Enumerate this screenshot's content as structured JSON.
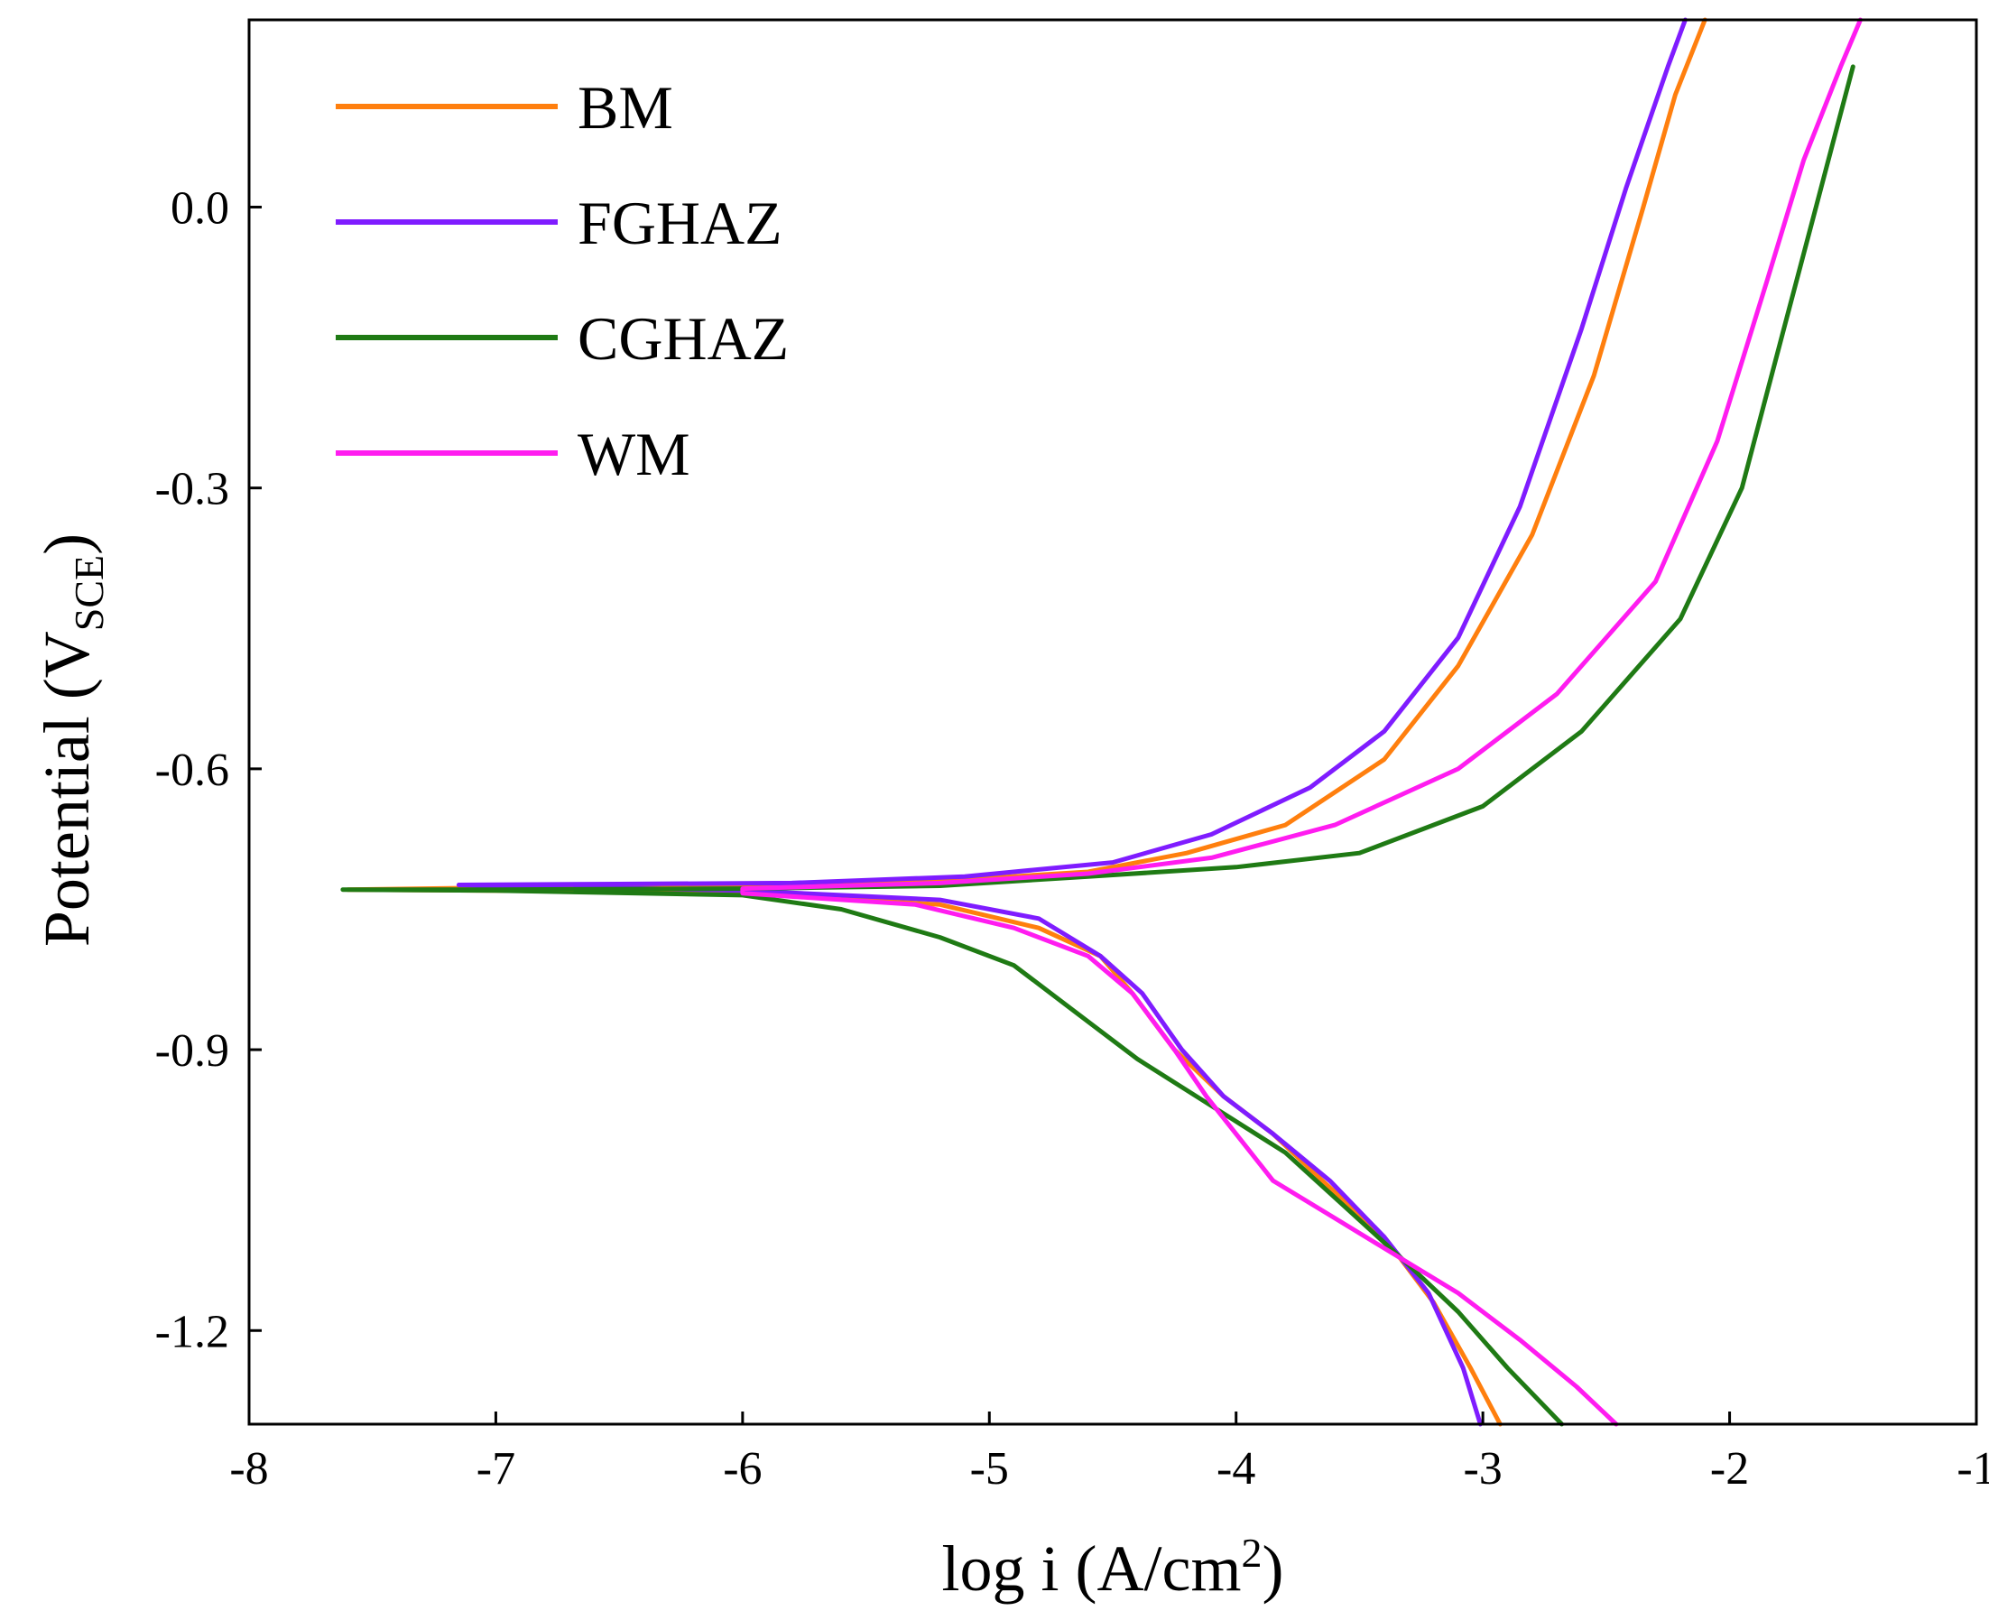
{
  "chart_data": {
    "type": "line",
    "title": "",
    "xlabel": "log i (A/cm2)",
    "xlabel_parts": {
      "base": "log i (A/cm",
      "sup": "2",
      "end": ")"
    },
    "ylabel": "Potential (VSCE)",
    "ylabel_parts": {
      "base": "Potential (V",
      "sub": "SCE",
      "end": ")"
    },
    "xlim": [
      -8,
      -1
    ],
    "ylim": [
      -1.3,
      0.2
    ],
    "xticks": [
      -8,
      -7,
      -6,
      -5,
      -4,
      -3,
      -2,
      -1
    ],
    "xtick_labels": [
      "-8",
      "-7",
      "-6",
      "-5",
      "-4",
      "-3",
      "-2",
      "-1"
    ],
    "yticks": [
      0.0,
      -0.3,
      -0.6,
      -0.9,
      -1.2
    ],
    "ytick_labels": [
      "0.0",
      "-0.3",
      "-0.6",
      "-0.9",
      "-1.2"
    ],
    "grid": false,
    "legend_position": "top-left",
    "series": [
      {
        "name": "BM",
        "color": "#ff7f0e",
        "points": [
          [
            -2.93,
            -1.3
          ],
          [
            -3.05,
            -1.24
          ],
          [
            -3.2,
            -1.17
          ],
          [
            -3.4,
            -1.1
          ],
          [
            -3.65,
            -1.04
          ],
          [
            -3.85,
            -0.99
          ],
          [
            -4.05,
            -0.95
          ],
          [
            -4.25,
            -0.9
          ],
          [
            -4.42,
            -0.84
          ],
          [
            -4.55,
            -0.8
          ],
          [
            -4.8,
            -0.77
          ],
          [
            -5.2,
            -0.745
          ],
          [
            -6.0,
            -0.733
          ],
          [
            -7.0,
            -0.73
          ],
          [
            -7.6,
            -0.729
          ],
          [
            -7.0,
            -0.727
          ],
          [
            -6.0,
            -0.725
          ],
          [
            -5.2,
            -0.72
          ],
          [
            -4.6,
            -0.71
          ],
          [
            -4.2,
            -0.69
          ],
          [
            -3.8,
            -0.66
          ],
          [
            -3.4,
            -0.59
          ],
          [
            -3.1,
            -0.49
          ],
          [
            -2.8,
            -0.35
          ],
          [
            -2.55,
            -0.18
          ],
          [
            -2.35,
            0.0
          ],
          [
            -2.22,
            0.12
          ],
          [
            -2.1,
            0.2
          ]
        ]
      },
      {
        "name": "FGHAZ",
        "color": "#7f1cff",
        "points": [
          [
            -3.01,
            -1.3
          ],
          [
            -3.08,
            -1.24
          ],
          [
            -3.22,
            -1.16
          ],
          [
            -3.4,
            -1.1
          ],
          [
            -3.62,
            -1.04
          ],
          [
            -3.85,
            -0.99
          ],
          [
            -4.05,
            -0.95
          ],
          [
            -4.22,
            -0.9
          ],
          [
            -4.38,
            -0.84
          ],
          [
            -4.55,
            -0.8
          ],
          [
            -4.8,
            -0.76
          ],
          [
            -5.2,
            -0.74
          ],
          [
            -6.0,
            -0.73
          ],
          [
            -7.0,
            -0.725
          ],
          [
            -7.15,
            -0.724
          ],
          [
            -6.5,
            -0.723
          ],
          [
            -5.8,
            -0.722
          ],
          [
            -5.1,
            -0.715
          ],
          [
            -4.5,
            -0.7
          ],
          [
            -4.1,
            -0.67
          ],
          [
            -3.7,
            -0.62
          ],
          [
            -3.4,
            -0.56
          ],
          [
            -3.1,
            -0.46
          ],
          [
            -2.85,
            -0.32
          ],
          [
            -2.6,
            -0.13
          ],
          [
            -2.42,
            0.02
          ],
          [
            -2.25,
            0.15
          ],
          [
            -2.18,
            0.2
          ]
        ]
      },
      {
        "name": "CGHAZ",
        "color": "#1f7a14",
        "points": [
          [
            -2.68,
            -1.3
          ],
          [
            -2.9,
            -1.24
          ],
          [
            -3.1,
            -1.18
          ],
          [
            -3.3,
            -1.13
          ],
          [
            -3.55,
            -1.07
          ],
          [
            -3.8,
            -1.01
          ],
          [
            -4.1,
            -0.96
          ],
          [
            -4.4,
            -0.91
          ],
          [
            -4.65,
            -0.86
          ],
          [
            -4.9,
            -0.81
          ],
          [
            -5.2,
            -0.78
          ],
          [
            -5.6,
            -0.75
          ],
          [
            -6.0,
            -0.735
          ],
          [
            -7.0,
            -0.73
          ],
          [
            -7.62,
            -0.729
          ],
          [
            -7.0,
            -0.729
          ],
          [
            -6.0,
            -0.728
          ],
          [
            -5.2,
            -0.725
          ],
          [
            -4.6,
            -0.715
          ],
          [
            -4.0,
            -0.705
          ],
          [
            -3.5,
            -0.69
          ],
          [
            -3.0,
            -0.64
          ],
          [
            -2.6,
            -0.56
          ],
          [
            -2.2,
            -0.44
          ],
          [
            -1.95,
            -0.3
          ],
          [
            -1.78,
            -0.13
          ],
          [
            -1.65,
            0.0
          ],
          [
            -1.55,
            0.1
          ],
          [
            -1.5,
            0.15
          ]
        ]
      },
      {
        "name": "WM",
        "color": "#ff1cf0",
        "points": [
          [
            -2.46,
            -1.3
          ],
          [
            -2.62,
            -1.26
          ],
          [
            -2.85,
            -1.21
          ],
          [
            -3.1,
            -1.16
          ],
          [
            -3.35,
            -1.12
          ],
          [
            -3.6,
            -1.08
          ],
          [
            -3.85,
            -1.04
          ],
          [
            -4.0,
            -0.99
          ],
          [
            -4.12,
            -0.95
          ],
          [
            -4.25,
            -0.9
          ],
          [
            -4.42,
            -0.84
          ],
          [
            -4.6,
            -0.8
          ],
          [
            -4.9,
            -0.77
          ],
          [
            -5.3,
            -0.745
          ],
          [
            -6.0,
            -0.733
          ],
          [
            -6.0,
            -0.728
          ],
          [
            -5.2,
            -0.722
          ],
          [
            -4.6,
            -0.712
          ],
          [
            -4.1,
            -0.695
          ],
          [
            -3.6,
            -0.66
          ],
          [
            -3.1,
            -0.6
          ],
          [
            -2.7,
            -0.52
          ],
          [
            -2.3,
            -0.4
          ],
          [
            -2.05,
            -0.25
          ],
          [
            -1.85,
            -0.08
          ],
          [
            -1.7,
            0.05
          ],
          [
            -1.55,
            0.15
          ],
          [
            -1.47,
            0.2
          ]
        ]
      }
    ]
  }
}
